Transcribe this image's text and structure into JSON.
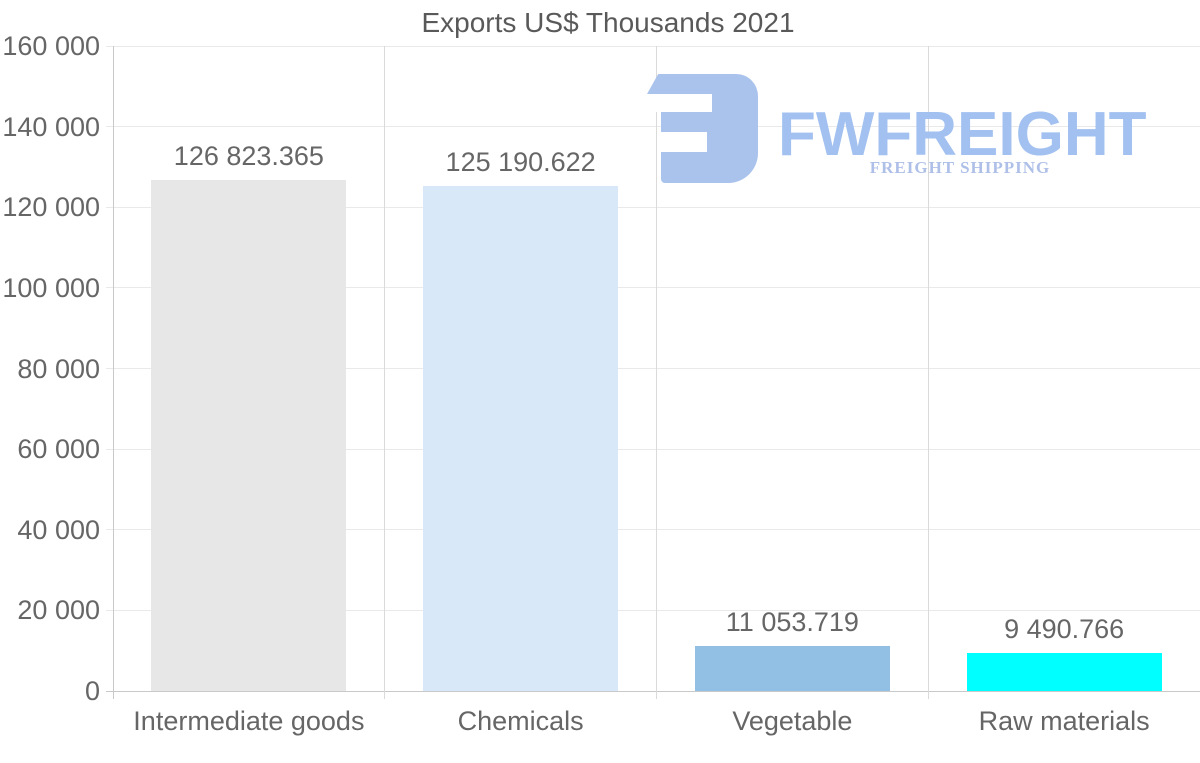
{
  "chart_data": {
    "type": "bar",
    "title": "Exports US$ Thousands 2021",
    "categories": [
      "Intermediate goods",
      "Chemicals",
      "Vegetable",
      "Raw materials"
    ],
    "values": [
      126823.365,
      125190.622,
      11053.719,
      9490.766
    ],
    "value_labels": [
      "126 823.365",
      "125 190.622",
      "11 053.719",
      "9 490.766"
    ],
    "bar_colors": [
      "#e7e7e7",
      "#d9e8f8",
      "#92c0e4",
      "#00ffff"
    ],
    "xlabel": "",
    "ylabel": "",
    "ylim": [
      0,
      160000
    ],
    "ytick_step": 20000,
    "ytick_labels": [
      "0",
      "20 000",
      "40 000",
      "60 000",
      "80 000",
      "100 000",
      "120 000",
      "140 000",
      "160 000"
    ],
    "grid": true,
    "legend_position": "none"
  },
  "watermark": {
    "brand": "FWFREIGHT",
    "tagline": "FREIGHT SHIPPING",
    "icon": "fwfreight-logo-icon",
    "icon_color": "#a9c3ed",
    "brand_color": "#a2c1f0",
    "tagline_color": "#aebfe8"
  },
  "colors": {
    "background": "#ffffff",
    "title_text": "#595959",
    "axis_text": "#666666",
    "grid_horizontal": "#e9e9e9",
    "grid_vertical": "#dadada",
    "axis_line": "#c9c9c9"
  }
}
